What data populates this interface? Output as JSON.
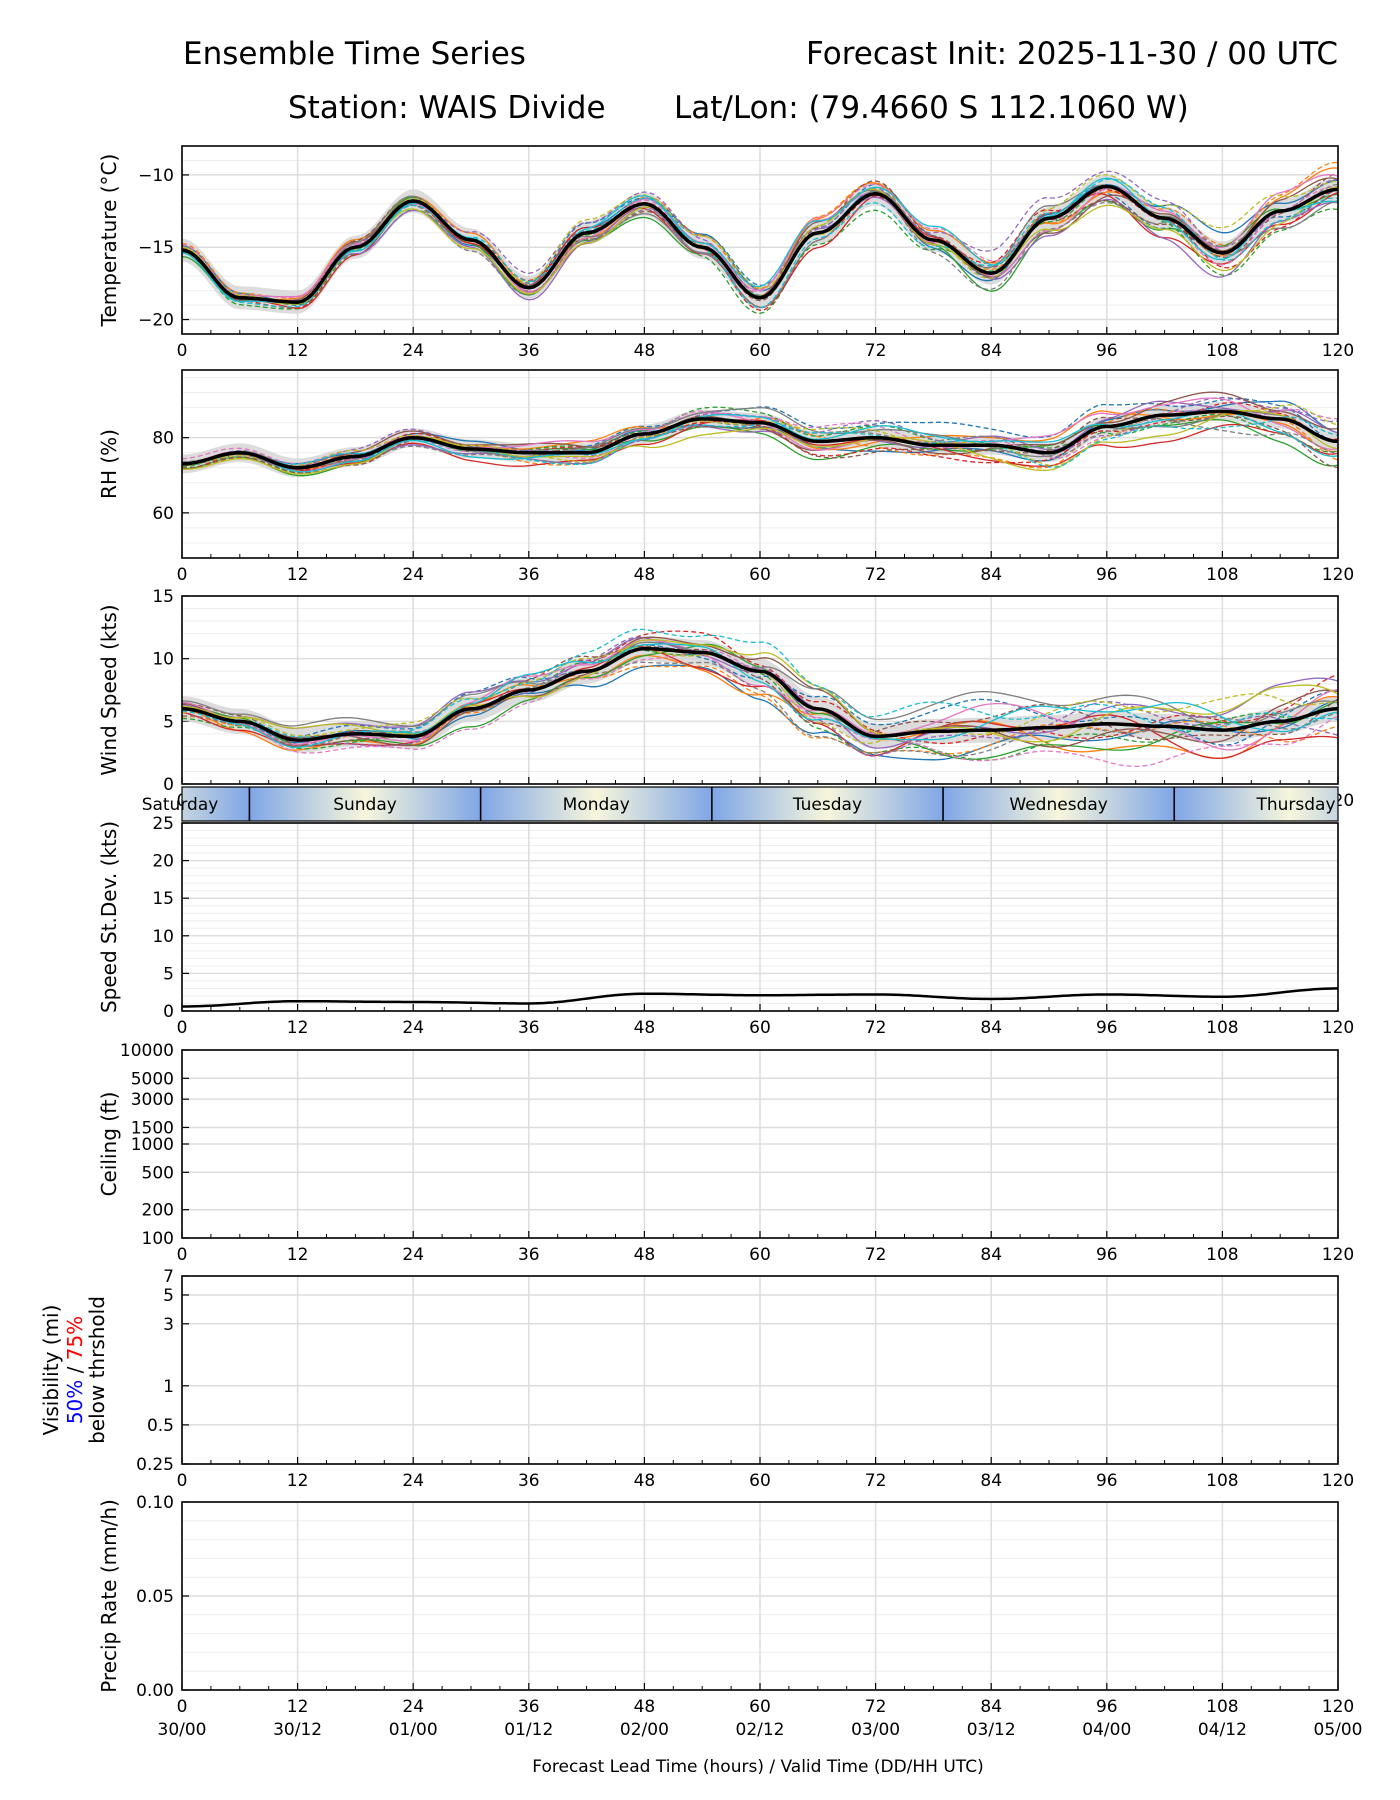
{
  "header": {
    "title": "Ensemble Time Series",
    "init": "Forecast Init: 2025-11-30 / 00 UTC",
    "station": "Station: WAIS Divide",
    "latlon": "Lat/Lon: (79.4660 S 112.1060 W)"
  },
  "xaxis": {
    "range": [
      0,
      120
    ],
    "ticks": [
      0,
      12,
      24,
      36,
      48,
      60,
      72,
      84,
      96,
      108,
      120
    ],
    "labels": [
      "0",
      "12",
      "24",
      "36",
      "48",
      "60",
      "72",
      "84",
      "96",
      "108",
      "120"
    ],
    "valid_times": [
      "30/00",
      "30/12",
      "01/00",
      "01/12",
      "02/00",
      "02/12",
      "03/00",
      "03/12",
      "04/00",
      "04/12",
      "05/00"
    ],
    "xlabel": "Forecast Lead Time (hours) / Valid Time (DD/HH UTC)"
  },
  "day_bar": [
    {
      "label": "Saturday"
    },
    {
      "label": "Sunday"
    },
    {
      "label": "Monday"
    },
    {
      "label": "Tuesday"
    },
    {
      "label": "Wednesday"
    },
    {
      "label": "Thursday"
    }
  ],
  "colors": {
    "mean": "#000000",
    "spread": "#d3d3d3",
    "members": [
      "#1f77b4",
      "#ff7f0e",
      "#2ca02c",
      "#d62728",
      "#9467bd",
      "#8c564b",
      "#e377c2",
      "#7f7f7f",
      "#bcbd22",
      "#17becf"
    ],
    "day_blue": "#7fa6e6",
    "day_cream": "#f7f6dc",
    "vis50": "#0000ff",
    "vis75": "#ff0000"
  },
  "visibility_label": {
    "line1": "Visibility (mi)",
    "p50": "50%",
    "sep": " / ",
    "p75": "75%",
    "line3": "below thrshold"
  },
  "chart_data": [
    {
      "type": "line",
      "id": "temp",
      "ylabel": "Temperature (°C)",
      "ylim": [
        -21,
        -8
      ],
      "yticks": [
        -20,
        -15,
        -10
      ],
      "ytick_labels": [
        "−20",
        "−15",
        "−10"
      ],
      "scale": "linear",
      "spread": 0.8,
      "member_noise": 0.9,
      "x": [
        0,
        6,
        12,
        18,
        24,
        30,
        36,
        42,
        48,
        54,
        60,
        66,
        72,
        78,
        84,
        90,
        96,
        102,
        108,
        114,
        120
      ],
      "mean": [
        -15.2,
        -18.5,
        -18.8,
        -15,
        -11.8,
        -14.5,
        -17.8,
        -14,
        -12,
        -15,
        -18.5,
        -14,
        -11.3,
        -14.5,
        -16.8,
        -13,
        -10.8,
        -13,
        -15.4,
        -12.5,
        -11
      ]
    },
    {
      "type": "line",
      "id": "rh",
      "ylabel": "RH (%)",
      "ylim": [
        48,
        98
      ],
      "yticks": [
        60,
        80
      ],
      "ytick_labels": [
        "60",
        "80"
      ],
      "scale": "linear",
      "spread": 2.5,
      "member_noise": 3.5,
      "x": [
        0,
        6,
        12,
        18,
        24,
        30,
        36,
        42,
        48,
        54,
        60,
        66,
        72,
        78,
        84,
        90,
        96,
        102,
        108,
        114,
        120
      ],
      "mean": [
        73,
        76,
        72,
        75,
        80,
        77,
        76,
        76,
        81,
        85,
        84,
        79,
        80,
        78,
        78,
        76,
        83,
        86,
        87,
        85,
        79
      ]
    },
    {
      "type": "line",
      "id": "wind",
      "ylabel": "Wind Speed (kts)",
      "ylim": [
        0,
        15
      ],
      "yticks": [
        0,
        5,
        10,
        15
      ],
      "ytick_labels": [
        "0",
        "5",
        "10",
        "15"
      ],
      "scale": "linear",
      "spread": 1.0,
      "member_noise": 1.6,
      "x": [
        0,
        6,
        12,
        18,
        24,
        30,
        36,
        42,
        48,
        54,
        60,
        66,
        72,
        78,
        84,
        90,
        96,
        102,
        108,
        114,
        120
      ],
      "mean": [
        6,
        5,
        3.5,
        4,
        3.8,
        6,
        7.5,
        9,
        10.8,
        10.5,
        9,
        6,
        3.8,
        4.2,
        4.3,
        4.5,
        4.8,
        4.6,
        4.3,
        5,
        6
      ]
    },
    {
      "type": "line",
      "id": "sdev",
      "ylabel": "Speed St.Dev. (kts)",
      "ylim": [
        0,
        25
      ],
      "yticks": [
        0,
        5,
        10,
        15,
        20,
        25
      ],
      "ytick_labels": [
        "0",
        "5",
        "10",
        "15",
        "20",
        "25"
      ],
      "scale": "linear",
      "spread": 0,
      "member_noise": 0,
      "x": [
        0,
        12,
        24,
        36,
        48,
        60,
        72,
        84,
        96,
        108,
        120
      ],
      "mean": [
        0.6,
        1.3,
        1.2,
        1.0,
        2.3,
        2.1,
        2.2,
        1.6,
        2.2,
        1.9,
        3.0
      ]
    },
    {
      "type": "line",
      "id": "ceiling",
      "ylabel": "Ceiling (ft)",
      "ylim": [
        100,
        10000
      ],
      "yticks": [
        100,
        200,
        500,
        1000,
        1500,
        3000,
        5000,
        10000
      ],
      "ytick_labels": [
        "100",
        "200",
        "500",
        "1000",
        "1500",
        "3000",
        "5000",
        "10000"
      ],
      "scale": "log",
      "spread": 0,
      "member_noise": 0,
      "x": [
        0,
        120
      ],
      "mean": []
    },
    {
      "type": "line",
      "id": "vis",
      "ylabel": "Visibility (mi)",
      "ylim": [
        0.25,
        7
      ],
      "yticks": [
        0.25,
        0.5,
        1,
        3,
        5,
        7
      ],
      "ytick_labels": [
        "0.25",
        "0.5",
        "1",
        "3",
        "5",
        "7"
      ],
      "scale": "log",
      "spread": 0,
      "member_noise": 0,
      "x": [
        0,
        120
      ],
      "mean": []
    },
    {
      "type": "line",
      "id": "precip",
      "ylabel": "Precip Rate (mm/h)",
      "ylim": [
        0,
        0.1
      ],
      "yticks": [
        0,
        0.05,
        0.1
      ],
      "ytick_labels": [
        "0.00",
        "0.05",
        "0.10"
      ],
      "scale": "linear",
      "spread": 0,
      "member_noise": 0,
      "x": [
        0,
        120
      ],
      "mean": []
    }
  ]
}
